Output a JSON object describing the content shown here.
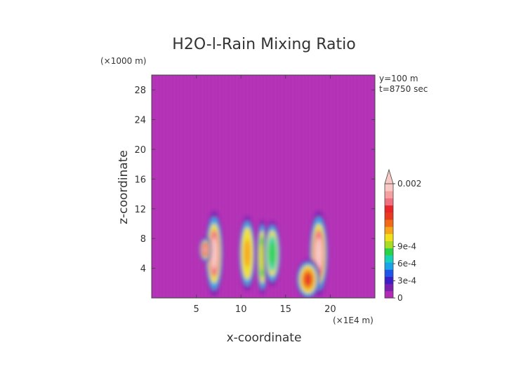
{
  "chart_data": {
    "type": "heatmap",
    "title": "H2O-l-Rain Mixing Ratio",
    "xlabel": "x-coordinate",
    "ylabel": "z-coordinate",
    "x_unit": "(×1E4 m)",
    "y_unit": "(×1000 m)",
    "xlim": [
      0,
      25
    ],
    "ylim": [
      0,
      30
    ],
    "xticks": [
      "5",
      "10",
      "15",
      "20"
    ],
    "yticks": [
      "4",
      "8",
      "12",
      "16",
      "20",
      "24",
      "28"
    ],
    "annotations": [
      "y=100 m",
      "t=8750 sec"
    ],
    "background_color": "#b12cb4",
    "colorbar": {
      "min": 0,
      "max": 0.002,
      "labels": [
        {
          "text": "0",
          "value": 0
        },
        {
          "text": "3e-4",
          "value": 0.0003
        },
        {
          "text": "6e-4",
          "value": 0.0006
        },
        {
          "text": "9e-4",
          "value": 0.0009
        },
        {
          "text": "0.002",
          "value": 0.002
        }
      ],
      "extend": "max",
      "colors": [
        "#b12cb4",
        "#7a1fb0",
        "#3d1fc8",
        "#1f55e8",
        "#1aa3e8",
        "#18d2b8",
        "#2ad24a",
        "#a9dc22",
        "#f2e01c",
        "#f5a51a",
        "#f06a18",
        "#e83a1e",
        "#e8252a",
        "#f07080",
        "#f5a0a0",
        "#f8c8c4"
      ]
    },
    "regions": [
      {
        "x": 7.0,
        "z": 6.0,
        "width": 1.5,
        "height": 8.5,
        "value": 0.002
      },
      {
        "x": 6.0,
        "z": 6.5,
        "width": 1.0,
        "height": 2.5,
        "value": 0.0018
      },
      {
        "x": 10.7,
        "z": 6.0,
        "width": 1.4,
        "height": 7.5,
        "value": 0.0012
      },
      {
        "x": 12.4,
        "z": 5.5,
        "width": 1.0,
        "height": 7.5,
        "value": 0.001
      },
      {
        "x": 13.5,
        "z": 6.0,
        "width": 1.4,
        "height": 6.5,
        "value": 0.0008
      },
      {
        "x": 18.7,
        "z": 6.0,
        "width": 1.6,
        "height": 8.5,
        "value": 0.002
      },
      {
        "x": 17.5,
        "z": 2.5,
        "width": 2.0,
        "height": 4.0,
        "value": 0.0014
      }
    ]
  }
}
